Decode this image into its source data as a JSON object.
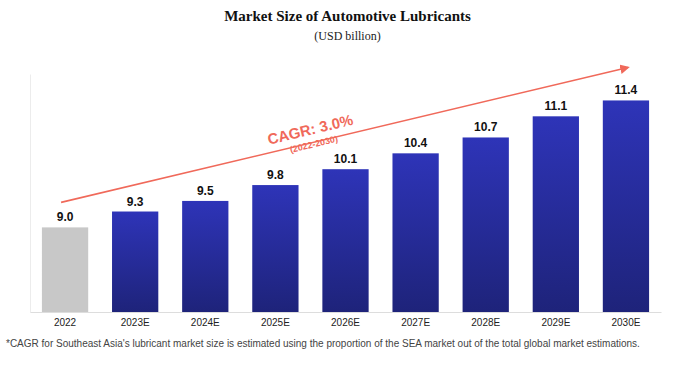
{
  "chart_data": {
    "type": "bar",
    "title": "Market Size of Automotive Lubricants",
    "subtitle": "(USD billion)",
    "categories": [
      "2022",
      "2023E",
      "2024E",
      "2025E",
      "2026E",
      "2027E",
      "2028E",
      "2029E",
      "2030E"
    ],
    "values": [
      9.0,
      9.3,
      9.5,
      9.8,
      10.1,
      10.4,
      10.7,
      11.1,
      11.4
    ],
    "value_labels": [
      "9.0",
      "9.3",
      "9.5",
      "9.8",
      "10.1",
      "10.4",
      "10.7",
      "11.1",
      "11.4"
    ],
    "colors": [
      "#c8c8c8",
      "#2a30a8",
      "#2a30a8",
      "#2a30a8",
      "#2a30a8",
      "#2a30a8",
      "#2a30a8",
      "#2a30a8",
      "#2a30a8"
    ],
    "ylim": [
      7.4,
      11.9
    ],
    "data_labels": true,
    "tick_labels": "x",
    "grid": false,
    "annotations": [
      "CAGR: 3.0%",
      "(2022-2030)"
    ],
    "footnote": "*CAGR for Southeast Asia's lubricant market size is estimated using the proportion of the SEA market out of the total global market estimations."
  }
}
